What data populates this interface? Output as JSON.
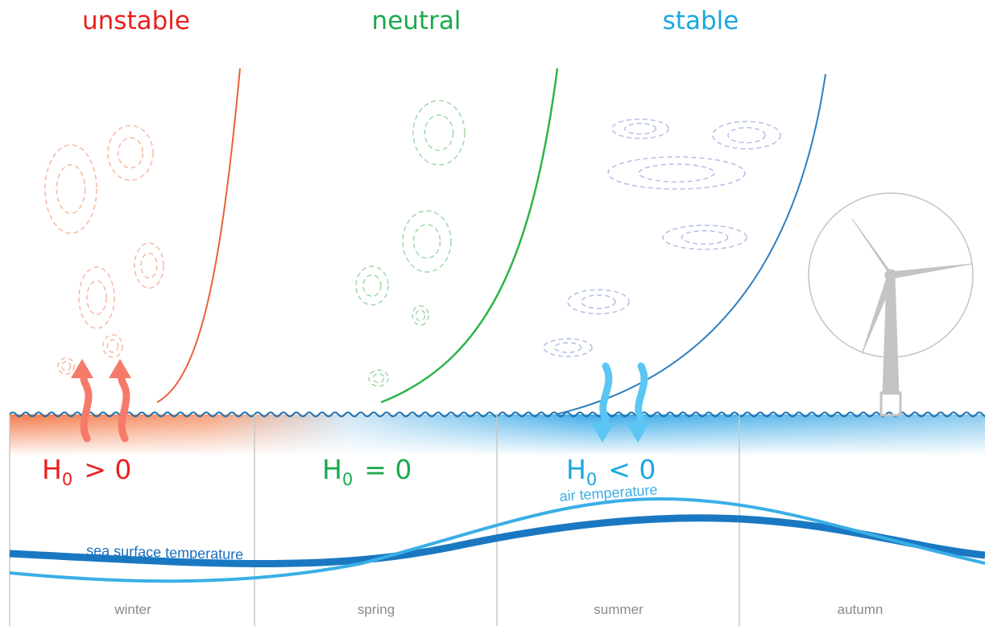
{
  "regimes": [
    {
      "label": "unstable",
      "flux": {
        "symbol": "H",
        "subscript": "0",
        "relation": "> 0"
      }
    },
    {
      "label": "neutral",
      "flux": {
        "symbol": "H",
        "subscript": "0",
        "relation": "= 0"
      }
    },
    {
      "label": "stable",
      "flux": {
        "symbol": "H",
        "subscript": "0",
        "relation": "< 0"
      }
    }
  ],
  "curves": {
    "air": "air temperature",
    "sea": "sea surface temperature"
  },
  "seasons": [
    "winter",
    "spring",
    "summer",
    "autumn"
  ]
}
